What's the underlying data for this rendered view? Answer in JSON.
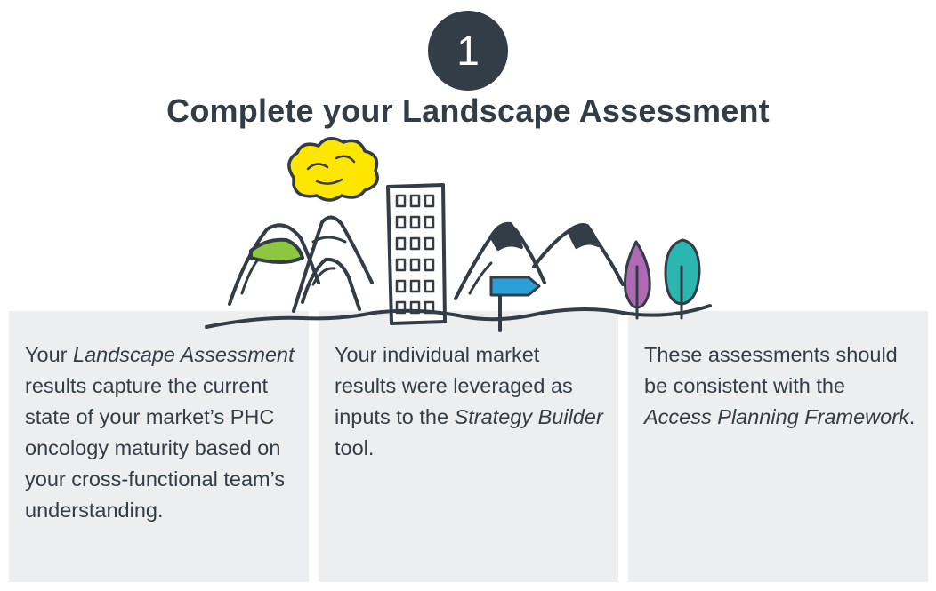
{
  "step": {
    "number": "1"
  },
  "title": "Complete your Landscape Assessment",
  "panels": [
    {
      "t1": "Your ",
      "t2": "Landscape Assessment",
      "t3": " results capture the current state of your market’s PHC oncology maturity based on your cross-functional team’s understanding."
    },
    {
      "t1": "Your individual market results were leveraged as inputs to the ",
      "t2": "Strategy Builder",
      "t3": " tool."
    },
    {
      "t1": "These assessments should be consistent with the ",
      "t2": "Access Planning Framework",
      "t3": "."
    }
  ],
  "illustration": {
    "icons": [
      "cloud-icon",
      "mountain-icon",
      "building-icon",
      "signpost-icon",
      "tree-icon"
    ],
    "colors": {
      "ink": "#333d47",
      "cloud": "#ffe600",
      "mountain_cap": "#8dc63f",
      "sign": "#2a9fd8",
      "tree_purple": "#b06ab3",
      "tree_teal": "#2bb6b2",
      "panel_bg": "#eceef0"
    }
  }
}
